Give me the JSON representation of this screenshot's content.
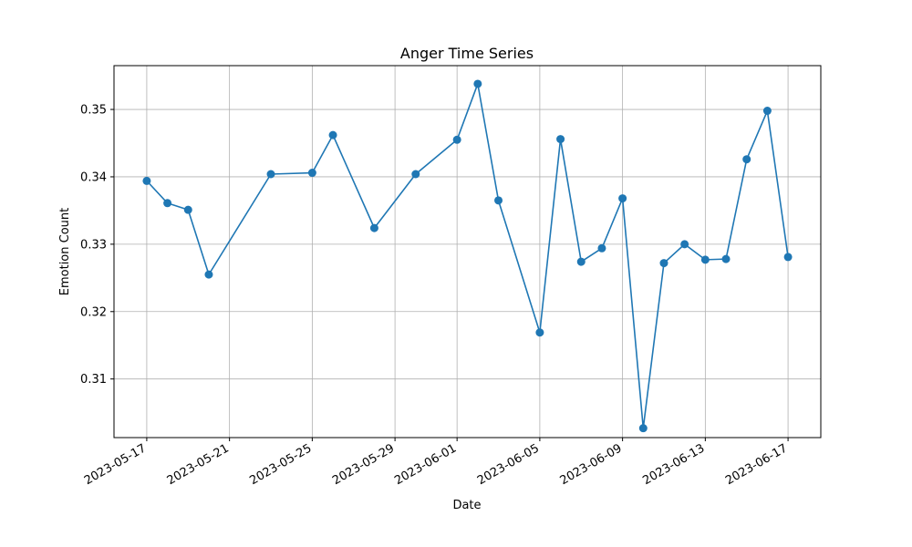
{
  "chart_data": {
    "type": "line",
    "title": "Anger Time Series",
    "xlabel": "Date",
    "ylabel": "Emotion Count",
    "x_ticks": [
      "2023-05-17",
      "2023-05-21",
      "2023-05-25",
      "2023-05-29",
      "2023-06-01",
      "2023-06-05",
      "2023-06-09",
      "2023-06-13",
      "2023-06-17"
    ],
    "y_ticks": [
      0.31,
      0.32,
      0.33,
      0.34,
      0.35
    ],
    "y_tick_labels": [
      "0.31",
      "0.32",
      "0.33",
      "0.34",
      "0.35"
    ],
    "xlim": [
      "2023-05-15T10:00",
      "2023-06-18T14:00"
    ],
    "ylim": [
      0.3013,
      0.3565
    ],
    "grid": true,
    "color": "#1f77b4",
    "series": [
      {
        "x": [
          "2023-05-17",
          "2023-05-18",
          "2023-05-19",
          "2023-05-20",
          "2023-05-23",
          "2023-05-25",
          "2023-05-26",
          "2023-05-28",
          "2023-05-30",
          "2023-06-01",
          "2023-06-02",
          "2023-06-03",
          "2023-06-05",
          "2023-06-06",
          "2023-06-07",
          "2023-06-08",
          "2023-06-09",
          "2023-06-10",
          "2023-06-11",
          "2023-06-12",
          "2023-06-13",
          "2023-06-14",
          "2023-06-15",
          "2023-06-16",
          "2023-06-17"
        ],
        "values": [
          0.3394,
          0.3361,
          0.3351,
          0.3255,
          0.3404,
          0.3406,
          0.3462,
          0.3324,
          0.3404,
          0.3455,
          0.3538,
          0.3365,
          0.3169,
          0.3456,
          0.3274,
          0.3294,
          0.3368,
          0.3027,
          0.3272,
          0.33,
          0.3277,
          0.3278,
          0.3426,
          0.3498,
          0.3281
        ]
      }
    ]
  }
}
